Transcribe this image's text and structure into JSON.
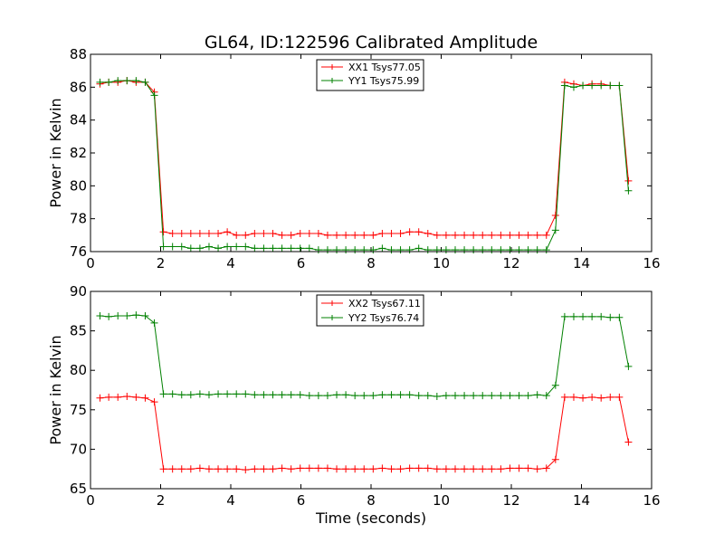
{
  "chart_data": [
    {
      "type": "line",
      "title": "GL64, ID:122596 Calibrated Amplitude",
      "xlabel": "",
      "ylabel": "Power in Kelvin",
      "xlim": [
        0,
        16
      ],
      "ylim": [
        76,
        88
      ],
      "xticks": [
        "0",
        "2",
        "4",
        "6",
        "8",
        "10",
        "12",
        "14",
        "16"
      ],
      "yticks": [
        "76",
        "78",
        "80",
        "82",
        "84",
        "86",
        "88"
      ],
      "legend_position": "top-center",
      "grid": false,
      "x": [
        0.27,
        0.52,
        0.78,
        1.04,
        1.3,
        1.56,
        1.82,
        2.08,
        2.34,
        2.6,
        2.86,
        3.12,
        3.38,
        3.64,
        3.9,
        4.16,
        4.42,
        4.68,
        4.94,
        5.2,
        5.46,
        5.72,
        5.98,
        6.24,
        6.5,
        6.76,
        7.02,
        7.28,
        7.54,
        7.8,
        8.06,
        8.32,
        8.58,
        8.84,
        9.1,
        9.36,
        9.62,
        9.88,
        10.14,
        10.4,
        10.66,
        10.92,
        11.18,
        11.44,
        11.7,
        11.96,
        12.22,
        12.48,
        12.74,
        13.0,
        13.26,
        13.52,
        13.78,
        14.04,
        14.3,
        14.56,
        14.82,
        15.08,
        15.34
      ],
      "series": [
        {
          "name": "XX1 Tsys77.05",
          "color": "#ff0000",
          "values": [
            86.2,
            86.3,
            86.3,
            86.4,
            86.3,
            86.3,
            85.7,
            77.2,
            77.1,
            77.1,
            77.1,
            77.1,
            77.1,
            77.1,
            77.2,
            77.0,
            77.0,
            77.1,
            77.1,
            77.1,
            77.0,
            77.0,
            77.1,
            77.1,
            77.1,
            77.0,
            77.0,
            77.0,
            77.0,
            77.0,
            77.0,
            77.1,
            77.1,
            77.1,
            77.2,
            77.2,
            77.1,
            77.0,
            77.0,
            77.0,
            77.0,
            77.0,
            77.0,
            77.0,
            77.0,
            77.0,
            77.0,
            77.0,
            77.0,
            77.0,
            78.2,
            86.3,
            86.2,
            86.1,
            86.2,
            86.2,
            86.1,
            86.1,
            80.3
          ]
        },
        {
          "name": "YY1 Tsys75.99",
          "color": "#008000",
          "values": [
            86.3,
            86.3,
            86.4,
            86.4,
            86.4,
            86.3,
            85.5,
            76.3,
            76.3,
            76.3,
            76.2,
            76.2,
            76.3,
            76.2,
            76.3,
            76.3,
            76.3,
            76.2,
            76.2,
            76.2,
            76.2,
            76.2,
            76.2,
            76.2,
            76.1,
            76.1,
            76.1,
            76.1,
            76.1,
            76.1,
            76.1,
            76.2,
            76.1,
            76.1,
            76.1,
            76.2,
            76.1,
            76.1,
            76.1,
            76.1,
            76.1,
            76.1,
            76.1,
            76.1,
            76.1,
            76.1,
            76.1,
            76.1,
            76.1,
            76.1,
            77.3,
            86.1,
            86.0,
            86.1,
            86.1,
            86.1,
            86.1,
            86.1,
            79.7
          ]
        }
      ]
    },
    {
      "type": "line",
      "title": "",
      "xlabel": "Time (seconds)",
      "ylabel": "Power in Kelvin",
      "xlim": [
        0,
        16
      ],
      "ylim": [
        65,
        90
      ],
      "xticks": [
        "0",
        "2",
        "4",
        "6",
        "8",
        "10",
        "12",
        "14",
        "16"
      ],
      "yticks": [
        "65",
        "70",
        "75",
        "80",
        "85",
        "90"
      ],
      "legend_position": "top-center",
      "grid": false,
      "x": [
        0.27,
        0.52,
        0.78,
        1.04,
        1.3,
        1.56,
        1.82,
        2.08,
        2.34,
        2.6,
        2.86,
        3.12,
        3.38,
        3.64,
        3.9,
        4.16,
        4.42,
        4.68,
        4.94,
        5.2,
        5.46,
        5.72,
        5.98,
        6.24,
        6.5,
        6.76,
        7.02,
        7.28,
        7.54,
        7.8,
        8.06,
        8.32,
        8.58,
        8.84,
        9.1,
        9.36,
        9.62,
        9.88,
        10.14,
        10.4,
        10.66,
        10.92,
        11.18,
        11.44,
        11.7,
        11.96,
        12.22,
        12.48,
        12.74,
        13.0,
        13.26,
        13.52,
        13.78,
        14.04,
        14.3,
        14.56,
        14.82,
        15.08,
        15.34
      ],
      "series": [
        {
          "name": "XX2 Tsys67.11",
          "color": "#ff0000",
          "values": [
            76.5,
            76.6,
            76.6,
            76.7,
            76.6,
            76.5,
            76.0,
            67.5,
            67.5,
            67.5,
            67.5,
            67.6,
            67.5,
            67.5,
            67.5,
            67.5,
            67.4,
            67.5,
            67.5,
            67.5,
            67.6,
            67.5,
            67.6,
            67.6,
            67.6,
            67.6,
            67.5,
            67.5,
            67.5,
            67.5,
            67.5,
            67.6,
            67.5,
            67.5,
            67.6,
            67.6,
            67.6,
            67.5,
            67.5,
            67.5,
            67.5,
            67.5,
            67.5,
            67.5,
            67.5,
            67.6,
            67.6,
            67.6,
            67.5,
            67.6,
            68.7,
            76.6,
            76.6,
            76.5,
            76.6,
            76.5,
            76.6,
            76.6,
            70.9
          ]
        },
        {
          "name": "YY2 Tsys76.74",
          "color": "#008000",
          "values": [
            86.9,
            86.8,
            86.9,
            86.9,
            87.0,
            86.9,
            86.0,
            77.0,
            77.0,
            76.9,
            76.9,
            77.0,
            76.9,
            77.0,
            77.0,
            77.0,
            77.0,
            76.9,
            76.9,
            76.9,
            76.9,
            76.9,
            76.9,
            76.8,
            76.8,
            76.8,
            76.9,
            76.9,
            76.8,
            76.8,
            76.8,
            76.9,
            76.9,
            76.9,
            76.9,
            76.8,
            76.8,
            76.7,
            76.8,
            76.8,
            76.8,
            76.8,
            76.8,
            76.8,
            76.8,
            76.8,
            76.8,
            76.8,
            76.9,
            76.8,
            78.1,
            86.8,
            86.8,
            86.8,
            86.8,
            86.8,
            86.7,
            86.7,
            80.5
          ]
        }
      ]
    }
  ]
}
